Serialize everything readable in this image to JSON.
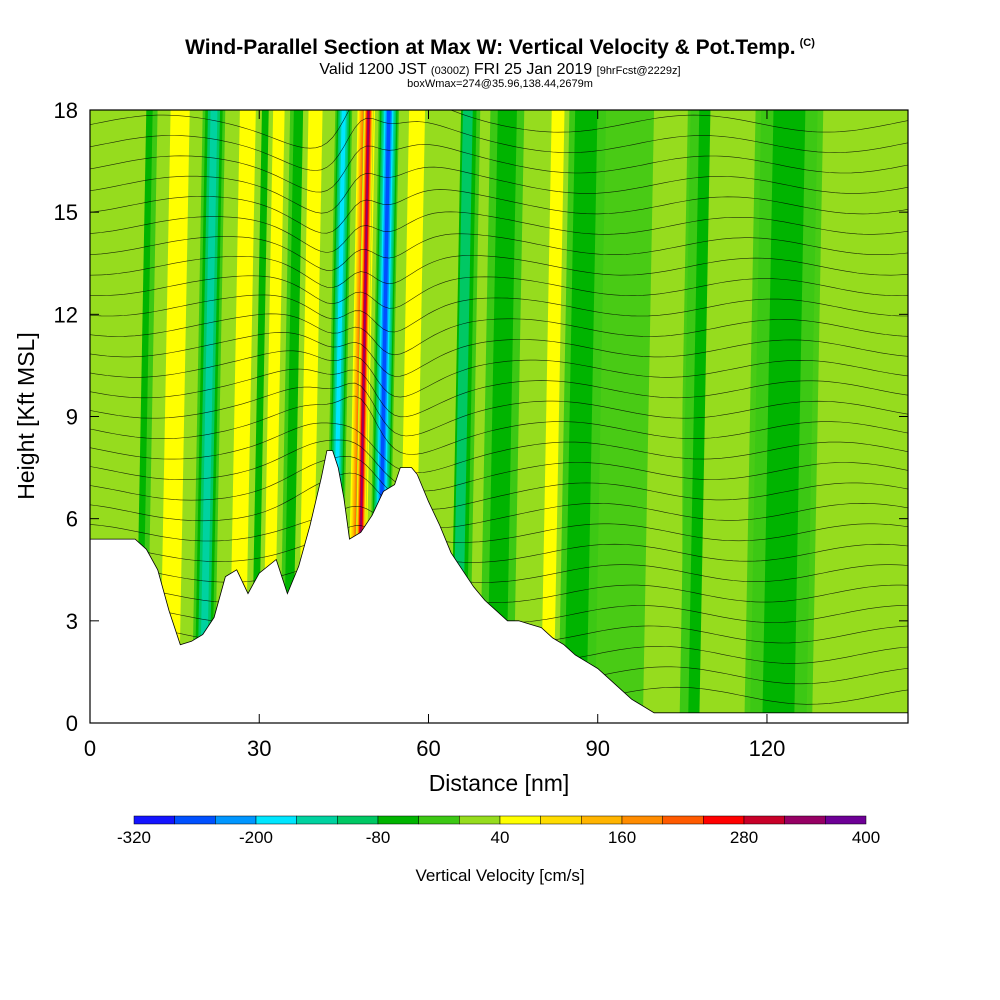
{
  "header": {
    "title": "Wind-Parallel Section at Max W: Vertical Velocity & Pot.Temp.",
    "copyright_mark": "(C)",
    "valid_prefix": "Valid 1200 JST",
    "valid_utc": "(0300Z)",
    "valid_date": "FRI 25 Jan 2019",
    "forecast": "[9hrFcst@2229z]",
    "box_info": "boxWmax=274@35.96,138.44,2679m"
  },
  "chart_data": {
    "type": "heatmap",
    "xlabel": "Distance [nm]",
    "ylabel": "Height [Kft MSL]",
    "xlim": [
      0,
      145
    ],
    "ylim": [
      0,
      18
    ],
    "x_ticks": [
      0,
      30,
      60,
      90,
      120
    ],
    "y_ticks": [
      0,
      3,
      6,
      9,
      12,
      15,
      18
    ],
    "colorbar": {
      "label": "Vertical Velocity [cm/s]",
      "tick_labels": [
        "-320",
        "-200",
        "-80",
        "40",
        "160",
        "280",
        "400"
      ],
      "colors": [
        "#1414ff",
        "#0050ff",
        "#0096ff",
        "#00e6ff",
        "#00d2a0",
        "#00c864",
        "#00b400",
        "#3cc814",
        "#96dc1e",
        "#ffff00",
        "#ffdc00",
        "#ffb400",
        "#ff8c00",
        "#ff5a00",
        "#ff0000",
        "#c80028",
        "#960064",
        "#6e0096"
      ]
    },
    "terrain_kft": [
      [
        0,
        5.4
      ],
      [
        8,
        5.4
      ],
      [
        10,
        5.1
      ],
      [
        12,
        4.5
      ],
      [
        14,
        3.3
      ],
      [
        16,
        2.3
      ],
      [
        18,
        2.4
      ],
      [
        20,
        2.6
      ],
      [
        22,
        3.1
      ],
      [
        24,
        4.3
      ],
      [
        26,
        4.5
      ],
      [
        28,
        3.8
      ],
      [
        30,
        4.4
      ],
      [
        33,
        4.8
      ],
      [
        35,
        3.8
      ],
      [
        37,
        4.6
      ],
      [
        39,
        5.8
      ],
      [
        41,
        7.2
      ],
      [
        42,
        8.0
      ],
      [
        43,
        8.0
      ],
      [
        44,
        7.5
      ],
      [
        45,
        6.6
      ],
      [
        46,
        5.4
      ],
      [
        48,
        5.6
      ],
      [
        50,
        6.1
      ],
      [
        52,
        6.8
      ],
      [
        54,
        7.0
      ],
      [
        55,
        7.5
      ],
      [
        57,
        7.5
      ],
      [
        58,
        7.3
      ],
      [
        60,
        6.5
      ],
      [
        62,
        5.8
      ],
      [
        64,
        5.0
      ],
      [
        66,
        4.5
      ],
      [
        68,
        4.0
      ],
      [
        70,
        3.6
      ],
      [
        72,
        3.3
      ],
      [
        74,
        3.0
      ],
      [
        76,
        3.0
      ],
      [
        78,
        2.9
      ],
      [
        80,
        2.8
      ],
      [
        82,
        2.5
      ],
      [
        84,
        2.3
      ],
      [
        86,
        2.0
      ],
      [
        88,
        1.8
      ],
      [
        90,
        1.6
      ],
      [
        92,
        1.3
      ],
      [
        94,
        1.0
      ],
      [
        96,
        0.7
      ],
      [
        98,
        0.5
      ],
      [
        100,
        0.3
      ],
      [
        104,
        0.3
      ],
      [
        145,
        0.3
      ]
    ],
    "updraft_bands": [
      {
        "x": 4,
        "w": 4.0,
        "value": 40
      },
      {
        "x": 14,
        "w": 3.0,
        "value": 90
      },
      {
        "x": 26,
        "w": 2.5,
        "value": 60
      },
      {
        "x": 31.5,
        "w": 1.8,
        "value": 80
      },
      {
        "x": 38,
        "w": 2.2,
        "value": 70
      },
      {
        "x": 47,
        "w": 1.8,
        "value": 280
      },
      {
        "x": 47.4,
        "w": 0.9,
        "value": 360
      },
      {
        "x": 56,
        "w": 2.5,
        "value": 60
      },
      {
        "x": 62,
        "w": 1.8,
        "value": 50
      },
      {
        "x": 81,
        "w": 2.0,
        "value": 60
      },
      {
        "x": 101,
        "w": 3.0,
        "value": 40
      },
      {
        "x": 112,
        "w": 4.0,
        "value": 40
      },
      {
        "x": 133,
        "w": 5.0,
        "value": 40
      }
    ],
    "downdraft_bands": [
      {
        "x": 8,
        "w": 2.0,
        "value": -80
      },
      {
        "x": 20,
        "w": 2.0,
        "value": -140
      },
      {
        "x": 29,
        "w": 1.5,
        "value": -80
      },
      {
        "x": 35,
        "w": 1.5,
        "value": -80
      },
      {
        "x": 43,
        "w": 1.5,
        "value": -200
      },
      {
        "x": 51,
        "w": 1.8,
        "value": -290
      },
      {
        "x": 65,
        "w": 2.2,
        "value": -100
      },
      {
        "x": 72,
        "w": 3.0,
        "value": -70
      },
      {
        "x": 86,
        "w": 3.5,
        "value": -60
      },
      {
        "x": 108,
        "w": 3.5,
        "value": -90
      },
      {
        "x": 122,
        "w": 5.0,
        "value": -60
      }
    ]
  }
}
